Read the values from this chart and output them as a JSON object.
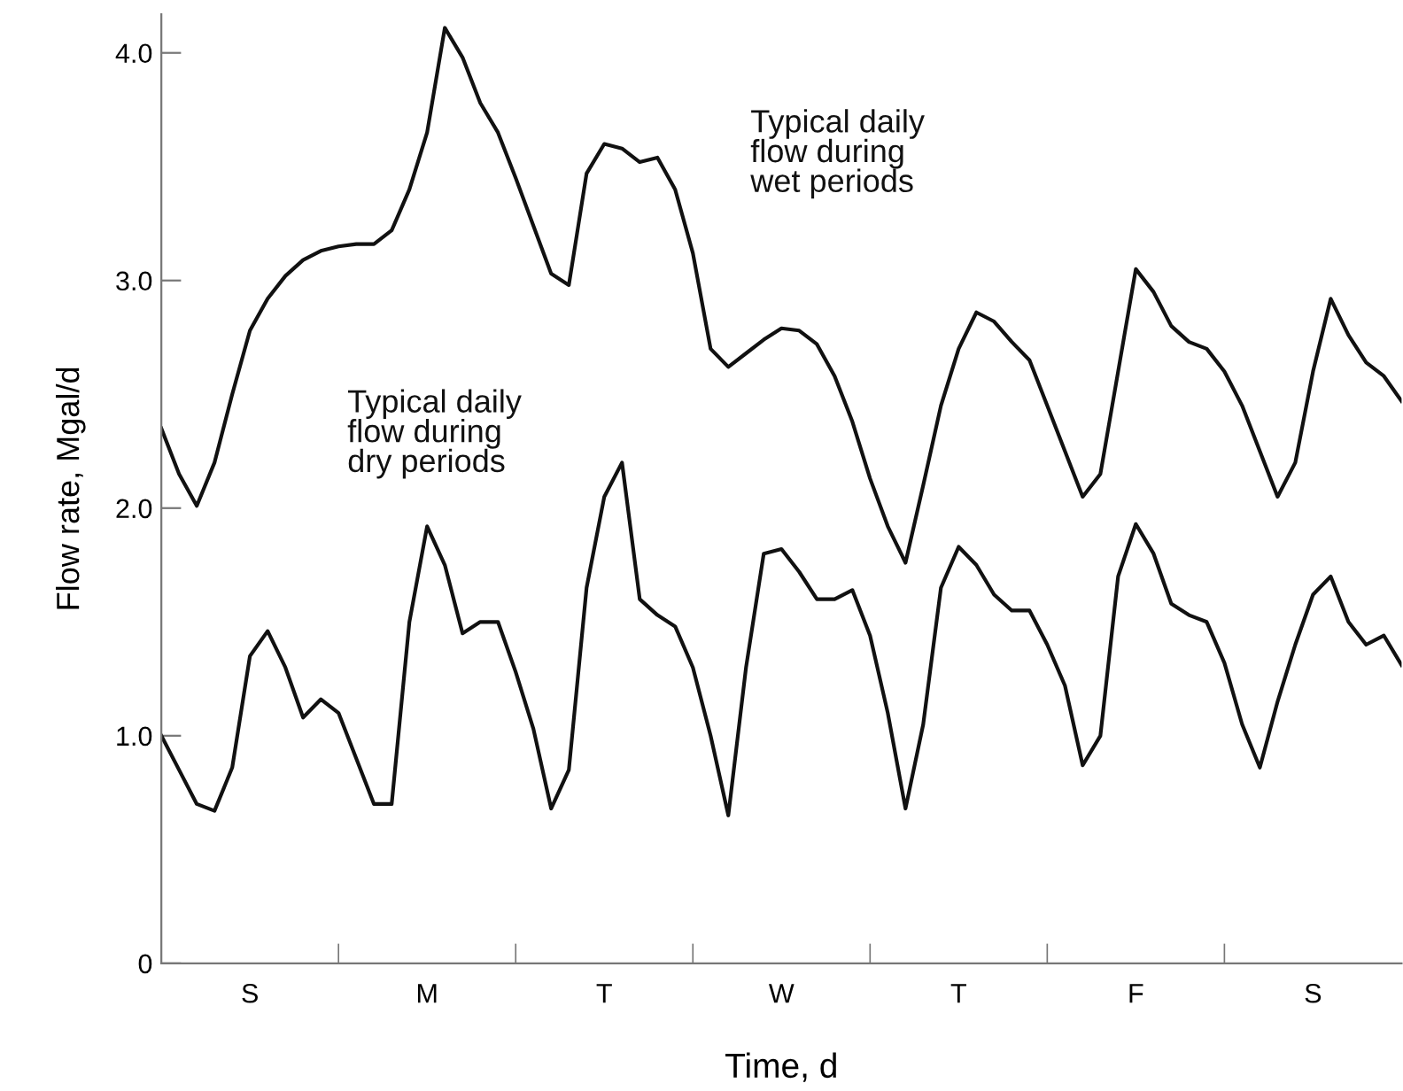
{
  "chart_data": {
    "type": "line",
    "xlabel": "Time, d",
    "ylabel": "Flow rate, Mgal/d",
    "categories": [
      null,
      null,
      null,
      null,
      null,
      "S",
      null,
      null,
      null,
      null,
      null,
      null,
      null,
      null,
      null,
      "M",
      null,
      null,
      null,
      null,
      null,
      null,
      null,
      null,
      null,
      "T",
      null,
      null,
      null,
      null,
      null,
      null,
      null,
      null,
      null,
      "W",
      null,
      null,
      null,
      null,
      null,
      null,
      null,
      null,
      null,
      "T",
      null,
      null,
      null,
      null,
      null,
      null,
      null,
      null,
      null,
      "F",
      null,
      null,
      null,
      null,
      null,
      null,
      null,
      null,
      null,
      "S",
      null,
      null,
      null,
      null,
      null
    ],
    "ylim": [
      0,
      4.17
    ],
    "yticks": [
      0,
      {
        "value": 1,
        "label": "1.0"
      },
      {
        "value": 2,
        "label": "2.0"
      },
      {
        "value": 3,
        "label": "3.0"
      },
      {
        "value": 4,
        "label": "4.0"
      }
    ],
    "grid": false,
    "legend": false,
    "marker": "none",
    "line_style": "solid",
    "series": [
      {
        "name": "Typical daily\nflow during\nwet periods",
        "color": "#111111",
        "values": [
          2.35,
          2.15,
          2.01,
          2.2,
          2.5,
          2.78,
          2.92,
          3.02,
          3.09,
          3.13,
          3.15,
          3.16,
          3.16,
          3.22,
          3.4,
          3.65,
          4.11,
          3.98,
          3.78,
          3.65,
          3.45,
          3.24,
          3.03,
          2.98,
          3.47,
          3.6,
          3.58,
          3.52,
          3.54,
          3.4,
          3.12,
          2.7,
          2.62,
          2.68,
          2.74,
          2.79,
          2.78,
          2.72,
          2.58,
          2.38,
          2.13,
          1.92,
          1.76,
          2.1,
          2.45,
          2.7,
          2.86,
          2.82,
          2.73,
          2.65,
          2.45,
          2.25,
          2.05,
          2.15,
          2.6,
          3.05,
          2.95,
          2.8,
          2.73,
          2.7,
          2.6,
          2.45,
          2.25,
          2.05,
          2.2,
          2.6,
          2.92,
          2.76,
          2.64,
          2.58,
          2.47
        ]
      },
      {
        "name": "Typical daily\nflow during\ndry periods",
        "color": "#111111",
        "values": [
          1.0,
          0.85,
          0.7,
          0.67,
          0.86,
          1.35,
          1.46,
          1.3,
          1.08,
          1.16,
          1.1,
          0.9,
          0.7,
          0.7,
          1.5,
          1.92,
          1.75,
          1.45,
          1.5,
          1.5,
          1.28,
          1.03,
          0.68,
          0.85,
          1.65,
          2.05,
          2.2,
          1.6,
          1.53,
          1.48,
          1.3,
          1.0,
          0.65,
          1.3,
          1.8,
          1.82,
          1.72,
          1.6,
          1.6,
          1.64,
          1.44,
          1.1,
          0.68,
          1.05,
          1.65,
          1.83,
          1.75,
          1.62,
          1.55,
          1.55,
          1.4,
          1.22,
          0.87,
          1.0,
          1.7,
          1.93,
          1.8,
          1.58,
          1.53,
          1.5,
          1.32,
          1.05,
          0.86,
          1.15,
          1.4,
          1.62,
          1.7,
          1.5,
          1.4,
          1.44,
          1.31
        ]
      }
    ]
  }
}
